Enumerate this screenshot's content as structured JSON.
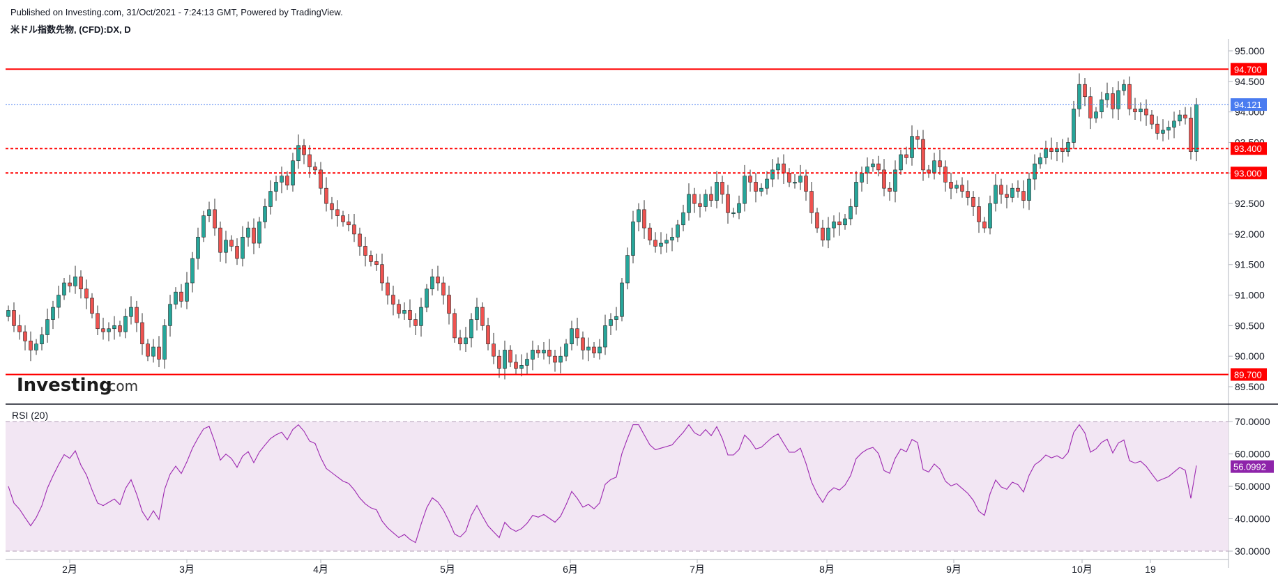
{
  "header": {
    "published": "Published on Investing.com, 31/Oct/2021 - 7:24:13 GMT, Powered by TradingView.",
    "symbol": "米ドル指数先物, (CFD):DX, D"
  },
  "logo": {
    "main": "Investing",
    "suffix": ".com"
  },
  "chart_data": [
    {
      "type": "candlestick",
      "ylim": [
        89.3,
        95.3
      ],
      "y_ticks": [
        "95.000",
        "94.500",
        "94.000",
        "93.500",
        "93.000",
        "92.500",
        "92.000",
        "91.500",
        "91.000",
        "90.500",
        "90.000",
        "89.500"
      ],
      "x_tick_labels": [
        "2月",
        "3月",
        "4月",
        "5月",
        "6月",
        "7月",
        "8月",
        "9月",
        "10月",
        "19"
      ],
      "horizontal_lines": [
        {
          "value": 94.7,
          "label": "94.700",
          "style": "solid",
          "color": "#ff0000"
        },
        {
          "value": 93.4,
          "label": "93.400",
          "style": "dashed",
          "color": "#ff0000"
        },
        {
          "value": 93.0,
          "label": "93.000",
          "style": "dashed",
          "color": "#ff0000"
        },
        {
          "value": 89.7,
          "label": "89.700",
          "style": "solid",
          "color": "#ff0000"
        }
      ],
      "last_price": {
        "value": 94.121,
        "label": "94.121",
        "color": "#4a7cf0"
      },
      "up_color": "#26a69a",
      "down_color": "#ef5350",
      "close": [
        90.75,
        90.5,
        90.4,
        90.25,
        90.1,
        90.2,
        90.35,
        90.6,
        90.8,
        91.0,
        91.2,
        91.15,
        91.3,
        91.1,
        90.95,
        90.7,
        90.45,
        90.4,
        90.45,
        90.5,
        90.4,
        90.65,
        90.8,
        90.55,
        90.2,
        90.0,
        90.15,
        89.95,
        90.5,
        90.85,
        91.05,
        90.9,
        91.2,
        91.6,
        91.95,
        92.3,
        92.4,
        92.1,
        91.7,
        91.9,
        91.8,
        91.6,
        91.95,
        92.1,
        91.85,
        92.2,
        92.45,
        92.7,
        92.85,
        92.95,
        92.8,
        93.2,
        93.45,
        93.3,
        93.1,
        93.05,
        92.75,
        92.5,
        92.4,
        92.3,
        92.2,
        92.15,
        92.0,
        91.8,
        91.65,
        91.55,
        91.5,
        91.2,
        91.0,
        90.85,
        90.7,
        90.75,
        90.6,
        90.5,
        90.8,
        91.1,
        91.3,
        91.2,
        91.0,
        90.7,
        90.3,
        90.2,
        90.3,
        90.6,
        90.8,
        90.5,
        90.2,
        90.0,
        89.8,
        90.1,
        89.9,
        89.8,
        89.85,
        89.95,
        90.1,
        90.05,
        90.1,
        90.0,
        89.9,
        90.0,
        90.2,
        90.45,
        90.3,
        90.1,
        90.15,
        90.05,
        90.15,
        90.5,
        90.6,
        90.65,
        91.2,
        91.65,
        92.2,
        92.4,
        92.1,
        91.9,
        91.8,
        91.85,
        91.9,
        91.95,
        92.15,
        92.35,
        92.65,
        92.5,
        92.45,
        92.65,
        92.55,
        92.85,
        92.65,
        92.35,
        92.35,
        92.5,
        92.95,
        92.85,
        92.7,
        92.75,
        92.9,
        93.05,
        93.15,
        93.0,
        92.85,
        92.85,
        92.95,
        92.7,
        92.35,
        92.1,
        91.9,
        92.1,
        92.2,
        92.15,
        92.25,
        92.45,
        92.85,
        93.0,
        93.1,
        93.15,
        93.05,
        92.75,
        92.7,
        93.05,
        93.3,
        93.25,
        93.6,
        93.55,
        93.05,
        93.0,
        93.2,
        93.1,
        92.85,
        92.75,
        92.8,
        92.7,
        92.6,
        92.45,
        92.2,
        92.1,
        92.5,
        92.8,
        92.65,
        92.6,
        92.75,
        92.7,
        92.55,
        92.9,
        93.15,
        93.25,
        93.4,
        93.35,
        93.4,
        93.35,
        93.5,
        94.05,
        94.45,
        94.25,
        93.9,
        94.0,
        94.2,
        94.3,
        94.05,
        94.35,
        94.45,
        94.05,
        94.0,
        94.05,
        93.95,
        93.8,
        93.65,
        93.7,
        93.75,
        93.85,
        93.95,
        93.9,
        93.35,
        94.12
      ],
      "series": [
        {
          "name": "RSI (20)",
          "last_value": 56.0992,
          "last_label": "56.0992",
          "color": "#9c27b0"
        }
      ]
    },
    {
      "type": "line",
      "title": "RSI (20)",
      "ylim": [
        29,
        71
      ],
      "y_ticks": [
        "70.0000",
        "60.0000",
        "50.0000",
        "40.0000",
        "30.0000"
      ],
      "bands": [
        30,
        70
      ]
    }
  ]
}
